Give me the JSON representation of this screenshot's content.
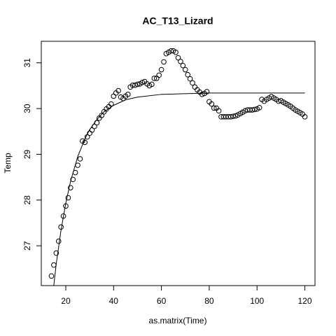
{
  "chart_data": {
    "type": "scatter",
    "title": "AC_T13_Lizard",
    "x_label": "as.matrix(Time)",
    "y_label": "Temp",
    "x": [
      14,
      15,
      16,
      17,
      18,
      19,
      20,
      21,
      22,
      23,
      24,
      25,
      26,
      27,
      28,
      29,
      30,
      31,
      32,
      33,
      34,
      35,
      36,
      37,
      38,
      39,
      40,
      41,
      42,
      43,
      44,
      45,
      46,
      47,
      48,
      49,
      50,
      51,
      52,
      53,
      54,
      55,
      56,
      57,
      58,
      59,
      60,
      61,
      62,
      63,
      64,
      65,
      66,
      67,
      68,
      69,
      70,
      71,
      72,
      73,
      74,
      75,
      76,
      77,
      78,
      79,
      80,
      81,
      82,
      83,
      84,
      85,
      86,
      87,
      88,
      89,
      90,
      91,
      92,
      93,
      94,
      95,
      96,
      97,
      98,
      99,
      100,
      101,
      102,
      103,
      104,
      105,
      106,
      107,
      108,
      109,
      110,
      111,
      112,
      113,
      114,
      115,
      116,
      117,
      118,
      119,
      120
    ],
    "values": [
      26.34,
      26.58,
      26.84,
      27.1,
      27.41,
      27.65,
      27.87,
      28.05,
      28.27,
      28.45,
      28.6,
      28.76,
      28.9,
      29.29,
      29.26,
      29.38,
      29.46,
      29.53,
      29.61,
      29.69,
      29.79,
      29.85,
      29.93,
      29.99,
      30.04,
      30.1,
      30.27,
      30.34,
      30.39,
      30.25,
      30.22,
      30.27,
      30.31,
      30.47,
      30.51,
      30.51,
      30.53,
      30.54,
      30.57,
      30.59,
      30.54,
      30.5,
      30.53,
      30.66,
      30.66,
      30.73,
      30.85,
      31.02,
      31.2,
      31.23,
      31.26,
      31.26,
      31.23,
      31.11,
      31.03,
      30.94,
      30.85,
      30.74,
      30.65,
      30.56,
      30.47,
      30.41,
      30.36,
      30.31,
      30.33,
      30.37,
      30.15,
      30.1,
      30.01,
      30.01,
      29.95,
      29.82,
      29.82,
      29.82,
      29.82,
      29.82,
      29.83,
      29.84,
      29.86,
      29.89,
      29.92,
      29.95,
      29.97,
      29.97,
      29.97,
      29.98,
      29.99,
      30.02,
      30.2,
      30.16,
      30.2,
      30.23,
      30.26,
      30.23,
      30.2,
      30.16,
      30.17,
      30.14,
      30.11,
      30.08,
      30.05,
      30.01,
      29.97,
      29.94,
      29.91,
      29.88,
      29.82
    ],
    "curve": {
      "x": [
        14,
        16,
        18,
        20,
        22,
        25,
        28,
        30,
        33,
        36,
        40,
        45,
        50,
        60,
        80,
        100,
        120
      ],
      "values": [
        25.68,
        26.6,
        27.34,
        27.93,
        28.41,
        28.95,
        29.34,
        29.54,
        29.76,
        29.93,
        30.07,
        30.19,
        30.25,
        30.31,
        30.34,
        30.34,
        30.34
      ]
    },
    "xlim": [
      9.76,
      124.24
    ],
    "ylim": [
      26.13,
      31.47
    ],
    "xticks": [
      20,
      40,
      60,
      80,
      100,
      120
    ],
    "yticks": [
      27,
      28,
      29,
      30,
      31
    ]
  }
}
